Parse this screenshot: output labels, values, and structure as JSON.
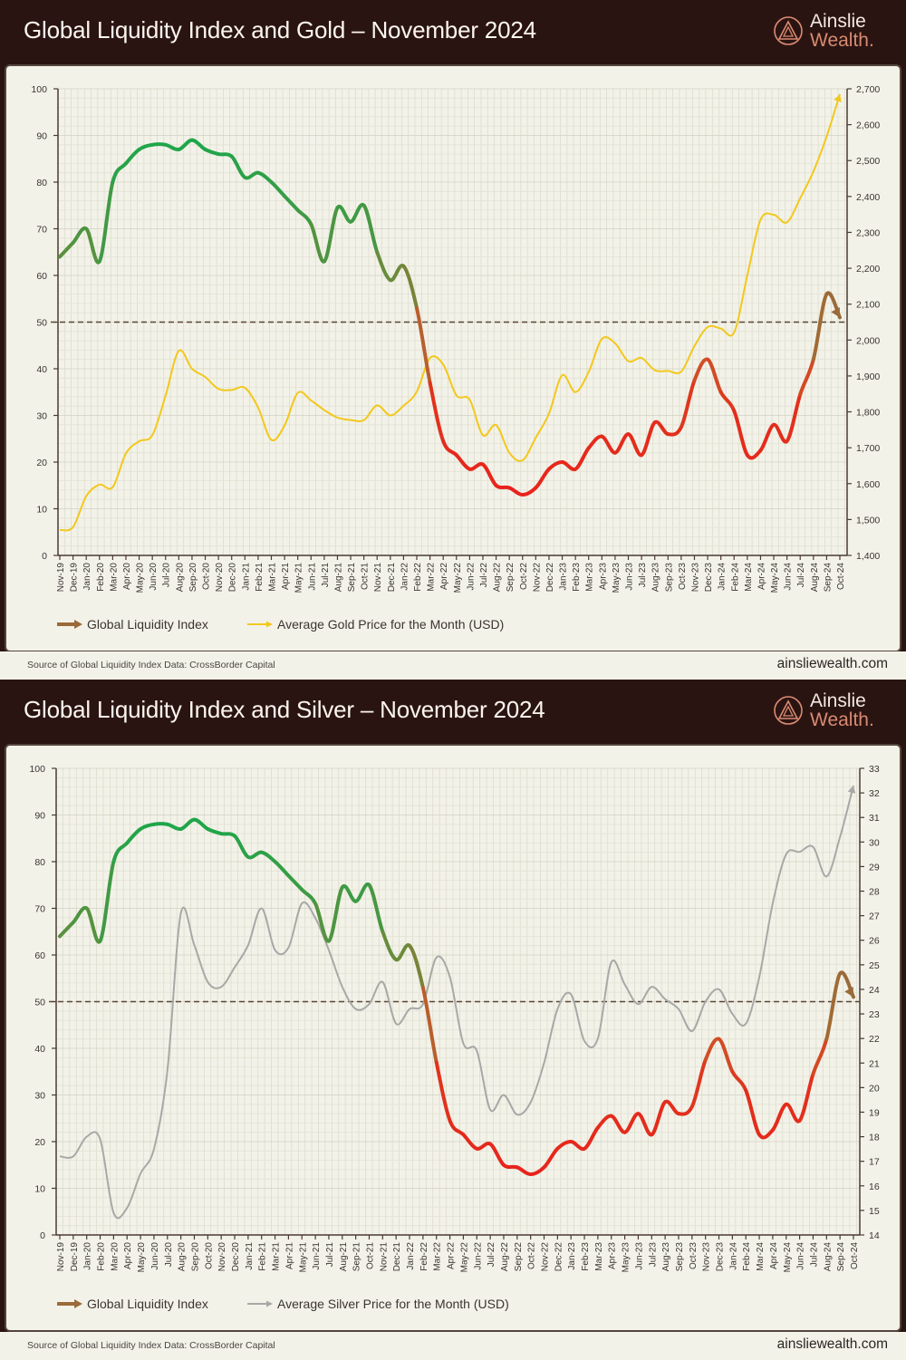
{
  "brand": {
    "line1": "Ainslie",
    "line2": "Wealth."
  },
  "footer": {
    "source": "Source of Global Liquidity Index Data: CrossBorder Capital",
    "site": "ainsliewealth.com"
  },
  "colors": {
    "header_bg": "#2a1411",
    "panel_bg": "#f3f2e9",
    "gli_high": "#1fa64a",
    "gli_low": "#e8231c",
    "gli_end": "#9a6a3a",
    "gold": "#f2c81c",
    "silver": "#a8a8a6"
  },
  "chart_data": [
    {
      "type": "line",
      "title": "Global Liquidity Index and Gold – November 2024",
      "categories": [
        "Nov-19",
        "Dec-19",
        "Jan-20",
        "Feb-20",
        "Mar-20",
        "Apr-20",
        "May-20",
        "Jun-20",
        "Jul-20",
        "Aug-20",
        "Sep-20",
        "Oct-20",
        "Nov-20",
        "Dec-20",
        "Jan-21",
        "Feb-21",
        "Mar-21",
        "Apr-21",
        "May-21",
        "Jun-21",
        "Jul-21",
        "Aug-21",
        "Sep-21",
        "Oct-21",
        "Nov-21",
        "Dec-21",
        "Jan-22",
        "Feb-22",
        "Mar-22",
        "Apr-22",
        "May-22",
        "Jun-22",
        "Jul-22",
        "Aug-22",
        "Sep-22",
        "Oct-22",
        "Nov-22",
        "Dec-22",
        "Jan-23",
        "Feb-23",
        "Mar-23",
        "Apr-23",
        "May-23",
        "Jun-23",
        "Jul-23",
        "Aug-23",
        "Sep-23",
        "Oct-23",
        "Nov-23",
        "Dec-23",
        "Jan-24",
        "Feb-24",
        "Mar-24",
        "Apr-24",
        "May-24",
        "Jun-24",
        "Jul-24",
        "Aug-24",
        "Sep-24",
        "Oct-24"
      ],
      "series": [
        {
          "name": "Global Liquidity Index",
          "axis": "left",
          "values": [
            64,
            67,
            70,
            63,
            80,
            84,
            87,
            88,
            88,
            87,
            89,
            87,
            86,
            85.5,
            81,
            82,
            80,
            77,
            74,
            71,
            63,
            74.5,
            71.5,
            75,
            65,
            59,
            62,
            53,
            37,
            24.5,
            21.5,
            18.5,
            19.5,
            15,
            14.5,
            13,
            14.5,
            18.5,
            20,
            18.5,
            23,
            25.5,
            22,
            26,
            21.5,
            28.5,
            26,
            27.5,
            37.5,
            42,
            35,
            31,
            21.5,
            22.5,
            28,
            24.5,
            34.5,
            42,
            56,
            51
          ]
        },
        {
          "name": "Average Gold Price for the Month (USD)",
          "axis": "right",
          "values": [
            1471,
            1479,
            1565,
            1597,
            1590,
            1684,
            1718,
            1735,
            1845,
            1970,
            1920,
            1897,
            1864,
            1861,
            1867,
            1812,
            1722,
            1762,
            1853,
            1832,
            1805,
            1784,
            1777,
            1777,
            1818,
            1790,
            1817,
            1856,
            1950,
            1932,
            1846,
            1834,
            1735,
            1763,
            1686,
            1665,
            1728,
            1795,
            1902,
            1855,
            1911,
            2003,
            1991,
            1941,
            1950,
            1916,
            1914,
            1912,
            1983,
            2036,
            2032,
            2021,
            2180,
            2335,
            2349,
            2328,
            2395,
            2470,
            2567,
            2685
          ]
        }
      ],
      "ylim": [
        0,
        100
      ],
      "y_ticks": [
        "0",
        "10",
        "20",
        "30",
        "40",
        "50",
        "60",
        "70",
        "80",
        "90",
        "100"
      ],
      "y2lim": [
        1400,
        2700
      ],
      "y2_ticks": [
        "1,400",
        "1,500",
        "1,600",
        "1,700",
        "1,800",
        "1,900",
        "2,000",
        "2,100",
        "2,200",
        "2,300",
        "2,400",
        "2,500",
        "2,600",
        "2,700"
      ],
      "reference_line": 50,
      "grid": true,
      "legend_position": "bottom-left"
    },
    {
      "type": "line",
      "title": "Global Liquidity Index and Silver – November 2024",
      "categories": [
        "Nov-19",
        "Dec-19",
        "Jan-20",
        "Feb-20",
        "Mar-20",
        "Apr-20",
        "May-20",
        "Jun-20",
        "Jul-20",
        "Aug-20",
        "Sep-20",
        "Oct-20",
        "Nov-20",
        "Dec-20",
        "Jan-21",
        "Feb-21",
        "Mar-21",
        "Apr-21",
        "May-21",
        "Jun-21",
        "Jul-21",
        "Aug-21",
        "Sep-21",
        "Oct-21",
        "Nov-21",
        "Dec-21",
        "Jan-22",
        "Feb-22",
        "Mar-22",
        "Apr-22",
        "May-22",
        "Jun-22",
        "Jul-22",
        "Aug-22",
        "Sep-22",
        "Oct-22",
        "Nov-22",
        "Dec-22",
        "Jan-23",
        "Feb-23",
        "Mar-23",
        "Apr-23",
        "May-23",
        "Jun-23",
        "Jul-23",
        "Aug-23",
        "Sep-23",
        "Oct-23",
        "Nov-23",
        "Dec-23",
        "Jan-24",
        "Feb-24",
        "Mar-24",
        "Apr-24",
        "May-24",
        "Jun-24",
        "Jul-24",
        "Aug-24",
        "Sep-24",
        "Oct-24"
      ],
      "series": [
        {
          "name": "Global Liquidity Index",
          "axis": "left",
          "values": [
            64,
            67,
            70,
            63,
            80,
            84,
            87,
            88,
            88,
            87,
            89,
            87,
            86,
            85.5,
            81,
            82,
            80,
            77,
            74,
            71,
            63,
            74.5,
            71.5,
            75,
            65,
            59,
            62,
            53,
            37,
            24.5,
            21.5,
            18.5,
            19.5,
            15,
            14.5,
            13,
            14.5,
            18.5,
            20,
            18.5,
            23,
            25.5,
            22,
            26,
            21.5,
            28.5,
            26,
            27.5,
            37.5,
            42,
            35,
            31,
            21.5,
            22.5,
            28,
            24.5,
            34.5,
            42,
            56,
            51
          ]
        },
        {
          "name": "Average Silver Price for the Month (USD)",
          "axis": "right",
          "values": [
            17.2,
            17.2,
            18.0,
            17.9,
            14.9,
            15.1,
            16.5,
            17.5,
            20.7,
            27.1,
            25.8,
            24.3,
            24.1,
            24.9,
            25.8,
            27.3,
            25.6,
            25.7,
            27.5,
            26.9,
            25.6,
            24.1,
            23.2,
            23.4,
            24.3,
            22.6,
            23.2,
            23.4,
            25.3,
            24.5,
            21.8,
            21.5,
            19.1,
            19.7,
            18.9,
            19.4,
            21.0,
            23.2,
            23.8,
            21.9,
            22.0,
            25.1,
            24.2,
            23.4,
            24.1,
            23.6,
            23.2,
            22.3,
            23.5,
            24.0,
            23.0,
            22.6,
            24.5,
            27.5,
            29.5,
            29.6,
            29.8,
            28.6,
            30.2,
            32.3
          ]
        }
      ],
      "ylim": [
        0,
        100
      ],
      "y_ticks": [
        "0",
        "10",
        "20",
        "30",
        "40",
        "50",
        "60",
        "70",
        "80",
        "90",
        "100"
      ],
      "y2lim": [
        14,
        33
      ],
      "y2_ticks": [
        "14",
        "15",
        "16",
        "17",
        "18",
        "19",
        "20",
        "21",
        "22",
        "23",
        "24",
        "25",
        "26",
        "27",
        "28",
        "29",
        "30",
        "31",
        "32",
        "33"
      ],
      "reference_line": 50,
      "grid": true,
      "legend_position": "bottom-left"
    }
  ]
}
